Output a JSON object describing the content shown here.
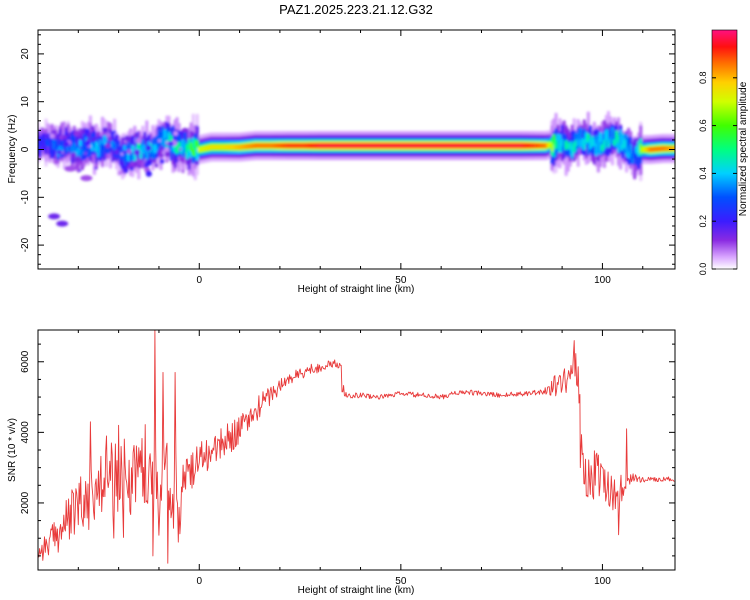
{
  "figure": {
    "title": "PAZ1.2025.223.21.12.G32"
  },
  "chart_data": [
    {
      "type": "heatmap",
      "panel": "top",
      "xlabel": "Height of straight line (km)",
      "ylabel": "Frequency (Hz)",
      "xlim": [
        -40,
        118
      ],
      "ylim": [
        -25,
        25
      ],
      "x_ticks": [
        0,
        50,
        100
      ],
      "x_tick_labels": [
        "0",
        "50",
        "100"
      ],
      "y_ticks": [
        -20,
        -10,
        0,
        10,
        20
      ],
      "y_tick_labels": [
        "-20",
        "-10",
        "0",
        "10",
        "20"
      ],
      "colorbar": {
        "label": "Normalized spectral amplitude",
        "range": [
          0,
          1
        ],
        "ticks": [
          0.0,
          0.2,
          0.4,
          0.6,
          0.8
        ],
        "tick_labels": [
          "0.0",
          "0.2",
          "0.4",
          "0.6",
          "0.8"
        ],
        "colormap": "rainbow (white→purple→blue→cyan→green→yellow→orange→red→magenta)"
      },
      "ridge": {
        "description": "dominant spectral ridge (frequency vs height)",
        "x": [
          -38,
          -35,
          -32,
          -30,
          -27,
          -25,
          -22,
          -20,
          -18,
          -15,
          -12,
          -10,
          -8,
          -6,
          -4,
          -2,
          0,
          3,
          6,
          10,
          14,
          18,
          22,
          26,
          30,
          35,
          40,
          50,
          60,
          70,
          80,
          86,
          88,
          90,
          92,
          94,
          96,
          98,
          100,
          102,
          104,
          106,
          108,
          110,
          112,
          115,
          118
        ],
        "freq": [
          1.5,
          0.5,
          1.0,
          0.0,
          1.2,
          0.5,
          1.5,
          -0.5,
          -1.0,
          0.0,
          -0.5,
          1.5,
          2.5,
          0.5,
          0.5,
          0.0,
          0.0,
          0.5,
          0.5,
          0.5,
          0.8,
          0.8,
          0.8,
          0.8,
          0.8,
          0.8,
          0.8,
          0.8,
          0.8,
          0.8,
          0.8,
          0.8,
          1.2,
          1.5,
          0.5,
          2.0,
          1.5,
          1.0,
          1.5,
          2.5,
          1.8,
          0.5,
          -1.5,
          0.0,
          0.0,
          0.2,
          0.2
        ],
        "amplitude": [
          0.25,
          0.35,
          0.3,
          0.4,
          0.35,
          0.4,
          0.35,
          0.3,
          0.4,
          0.45,
          0.4,
          0.4,
          0.45,
          0.5,
          0.45,
          0.55,
          0.7,
          0.75,
          0.75,
          0.8,
          0.85,
          0.85,
          0.9,
          0.9,
          0.95,
          0.95,
          0.95,
          0.95,
          0.95,
          0.95,
          0.95,
          0.85,
          0.55,
          0.45,
          0.45,
          0.4,
          0.45,
          0.45,
          0.5,
          0.4,
          0.5,
          0.45,
          0.35,
          0.7,
          0.85,
          0.85,
          0.8
        ]
      },
      "outliers": [
        {
          "x": -36,
          "freq": -14,
          "amplitude": 0.15
        },
        {
          "x": -34,
          "freq": -15.5,
          "amplitude": 0.15
        },
        {
          "x": -28,
          "freq": -6,
          "amplitude": 0.1
        },
        {
          "x": -32,
          "freq": -4,
          "amplitude": 0.1
        }
      ]
    },
    {
      "type": "line",
      "panel": "bottom",
      "xlabel": "Height of straight line (km)",
      "ylabel": "SNR (10 * v/v)",
      "xlim": [
        -40,
        118
      ],
      "ylim": [
        100,
        6900
      ],
      "x_ticks": [
        0,
        50,
        100
      ],
      "x_tick_labels": [
        "0",
        "50",
        "100"
      ],
      "y_ticks": [
        2000,
        4000,
        6000
      ],
      "y_tick_labels": [
        "2000",
        "4000",
        "6000"
      ],
      "line_color": "#e83a3a",
      "series": [
        {
          "x": [
            -40,
            -38,
            -36,
            -34,
            -32,
            -30,
            -28,
            -26,
            -24,
            -22,
            -20,
            -18,
            -16,
            -14,
            -12,
            -11,
            -10,
            -8,
            -6,
            -5,
            -4,
            -2,
            0,
            2,
            4,
            6,
            8,
            10,
            12,
            14,
            16,
            18,
            20,
            22,
            24,
            26,
            28,
            30,
            32,
            34,
            35,
            36,
            38,
            40,
            45,
            50,
            55,
            60,
            65,
            70,
            75,
            80,
            85,
            88,
            90,
            91,
            92,
            93,
            94,
            95,
            96,
            98,
            100,
            102,
            104,
            106,
            108,
            110,
            112,
            114,
            116,
            118
          ],
          "y": [
            600,
            800,
            1000,
            1300,
            1600,
            1900,
            2100,
            2300,
            2500,
            2700,
            2800,
            2700,
            2900,
            3000,
            3200,
            3500,
            2000,
            3000,
            2000,
            1600,
            2400,
            3000,
            3200,
            3400,
            3500,
            3700,
            3900,
            4100,
            4300,
            4600,
            4900,
            5100,
            5300,
            5500,
            5600,
            5700,
            5800,
            5850,
            5900,
            5950,
            5900,
            5100,
            5050,
            5050,
            5000,
            5100,
            5050,
            5000,
            5150,
            5100,
            5050,
            5100,
            5150,
            5300,
            5400,
            5600,
            5800,
            6000,
            5600,
            3200,
            2700,
            2800,
            2600,
            2400,
            2300,
            2600,
            2700,
            2650,
            2700,
            2650,
            2700,
            2650
          ],
          "noise": [
            300,
            400,
            500,
            600,
            700,
            800,
            900,
            1000,
            1000,
            1100,
            1100,
            1100,
            1200,
            1200,
            1400,
            1500,
            1200,
            1100,
            900,
            800,
            700,
            600,
            600,
            500,
            500,
            450,
            450,
            400,
            400,
            350,
            300,
            280,
            250,
            220,
            200,
            180,
            160,
            150,
            140,
            130,
            120,
            100,
            80,
            80,
            70,
            70,
            70,
            70,
            70,
            70,
            70,
            70,
            100,
            300,
            400,
            500,
            600,
            500,
            400,
            500,
            600,
            700,
            700,
            600,
            500,
            300,
            150,
            80,
            60,
            60,
            60,
            60
          ]
        }
      ]
    }
  ]
}
